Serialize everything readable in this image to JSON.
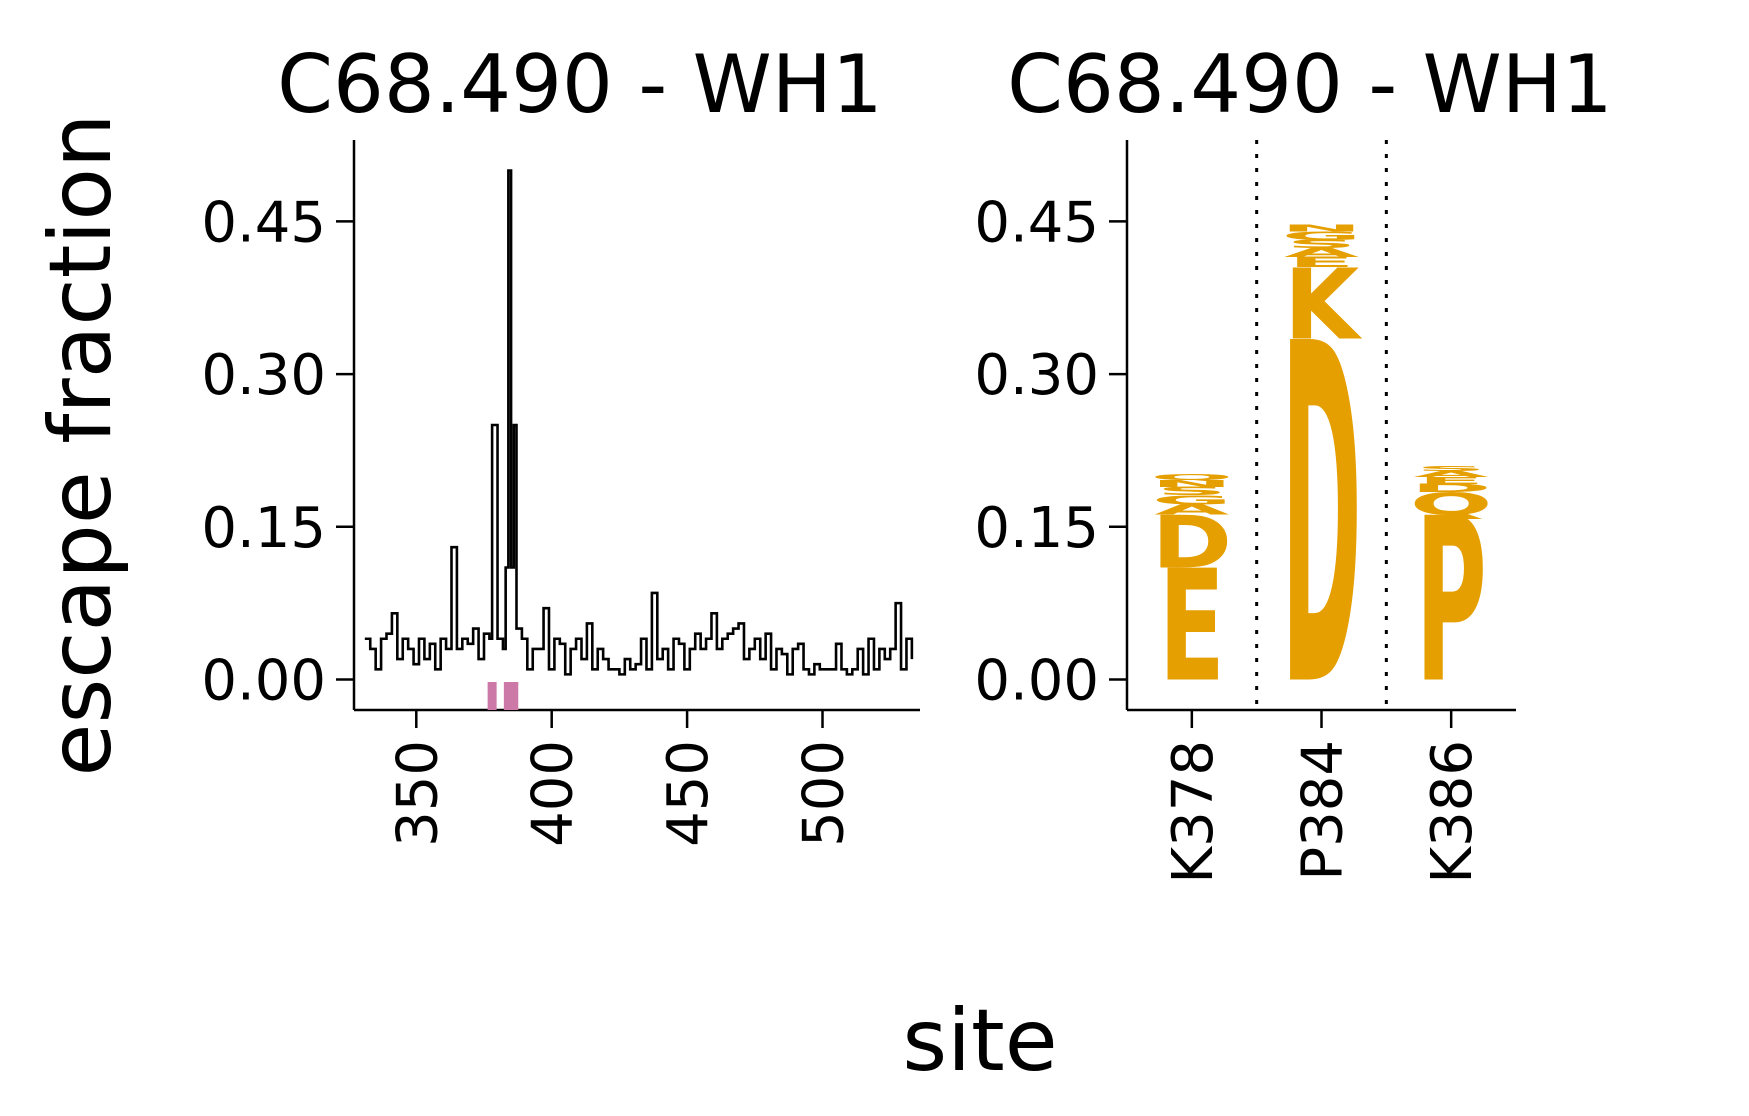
{
  "figure": {
    "ylabel": "escape fraction",
    "xlabel": "site"
  },
  "chart_data": [
    {
      "panel": "line",
      "type": "line",
      "title": "C68.490 - WH1",
      "ylim": [
        -0.03,
        0.53
      ],
      "xlim": [
        327,
        536
      ],
      "yticks": [
        0.0,
        0.15,
        0.3,
        0.45
      ],
      "ytick_labels": [
        "0.00",
        "0.15",
        "0.30",
        "0.45"
      ],
      "xticks": [
        350,
        400,
        450,
        500
      ],
      "xtick_labels": [
        "350",
        "400",
        "450",
        "500"
      ],
      "colors": {
        "line": "#000000",
        "highlight": "#cc79a7"
      },
      "highlight_sites": [
        378,
        384,
        386
      ],
      "series": [
        {
          "name": "",
          "x": [
            331,
            333,
            335,
            337,
            339,
            341,
            343,
            345,
            347,
            349,
            351,
            353,
            355,
            357,
            359,
            361,
            363,
            365,
            367,
            369,
            371,
            373,
            375,
            377,
            378,
            380,
            382,
            383,
            384,
            385,
            386,
            387,
            389,
            391,
            393,
            395,
            397,
            399,
            401,
            403,
            405,
            407,
            409,
            411,
            413,
            415,
            417,
            419,
            421,
            423,
            425,
            427,
            429,
            431,
            433,
            435,
            437,
            439,
            441,
            443,
            445,
            447,
            449,
            451,
            453,
            455,
            457,
            459,
            461,
            463,
            465,
            467,
            469,
            471,
            473,
            475,
            477,
            479,
            481,
            483,
            485,
            487,
            489,
            491,
            493,
            495,
            497,
            499,
            501,
            503,
            505,
            507,
            509,
            511,
            513,
            515,
            517,
            519,
            521,
            523,
            525,
            527,
            529,
            531,
            533
          ],
          "y": [
            0.04,
            0.03,
            0.01,
            0.04,
            0.045,
            0.065,
            0.02,
            0.04,
            0.03,
            0.015,
            0.04,
            0.02,
            0.035,
            0.01,
            0.04,
            0.03,
            0.13,
            0.03,
            0.04,
            0.035,
            0.05,
            0.02,
            0.045,
            0.04,
            0.25,
            0.04,
            0.03,
            0.11,
            0.5,
            0.11,
            0.25,
            0.05,
            0.04,
            0.01,
            0.03,
            0.03,
            0.07,
            0.01,
            0.04,
            0.035,
            0.005,
            0.03,
            0.04,
            0.02,
            0.055,
            0.01,
            0.03,
            0.02,
            0.01,
            0.01,
            0.005,
            0.02,
            0.01,
            0.015,
            0.04,
            0.01,
            0.085,
            0.02,
            0.03,
            0.01,
            0.04,
            0.035,
            0.01,
            0.03,
            0.045,
            0.03,
            0.04,
            0.065,
            0.03,
            0.04,
            0.045,
            0.05,
            0.055,
            0.02,
            0.03,
            0.04,
            0.02,
            0.045,
            0.01,
            0.03,
            0.025,
            0.005,
            0.03,
            0.035,
            0.01,
            0.005,
            0.015,
            0.01,
            0.01,
            0.01,
            0.035,
            0.01,
            0.005,
            0.01,
            0.03,
            0.005,
            0.04,
            0.01,
            0.03,
            0.02,
            0.03,
            0.075,
            0.01,
            0.04,
            0.02
          ]
        }
      ]
    },
    {
      "panel": "logo",
      "type": "bar",
      "title": "C68.490 - WH1",
      "ylim": [
        -0.03,
        0.53
      ],
      "yticks": [
        0.0,
        0.15,
        0.3,
        0.45
      ],
      "ytick_labels": [
        "0.00",
        "0.15",
        "0.30",
        "0.45"
      ],
      "categories": [
        "K378",
        "P384",
        "K386"
      ],
      "colors": {
        "letter": "#e69f00",
        "divider": "#000000"
      },
      "stacks": [
        {
          "site": "K378",
          "letters": [
            {
              "letter": "E",
              "value": 0.11
            },
            {
              "letter": "D",
              "value": 0.052
            },
            {
              "letter": "A",
              "value": 0.01
            },
            {
              "letter": "G",
              "value": 0.009
            },
            {
              "letter": "S",
              "value": 0.008
            },
            {
              "letter": "N",
              "value": 0.007
            },
            {
              "letter": "Q",
              "value": 0.006
            }
          ]
        },
        {
          "site": "P384",
          "letters": [
            {
              "letter": "D",
              "value": 0.335
            },
            {
              "letter": "K",
              "value": 0.07
            },
            {
              "letter": "E",
              "value": 0.01
            },
            {
              "letter": "A",
              "value": 0.009
            },
            {
              "letter": "S",
              "value": 0.008
            },
            {
              "letter": "G",
              "value": 0.008
            },
            {
              "letter": "N",
              "value": 0.007
            }
          ]
        },
        {
          "site": "K386",
          "letters": [
            {
              "letter": "P",
              "value": 0.162
            },
            {
              "letter": "Q",
              "value": 0.022
            },
            {
              "letter": "D",
              "value": 0.008
            },
            {
              "letter": "E",
              "value": 0.007
            },
            {
              "letter": "A",
              "value": 0.006
            },
            {
              "letter": "S",
              "value": 0.005
            }
          ]
        }
      ]
    }
  ]
}
